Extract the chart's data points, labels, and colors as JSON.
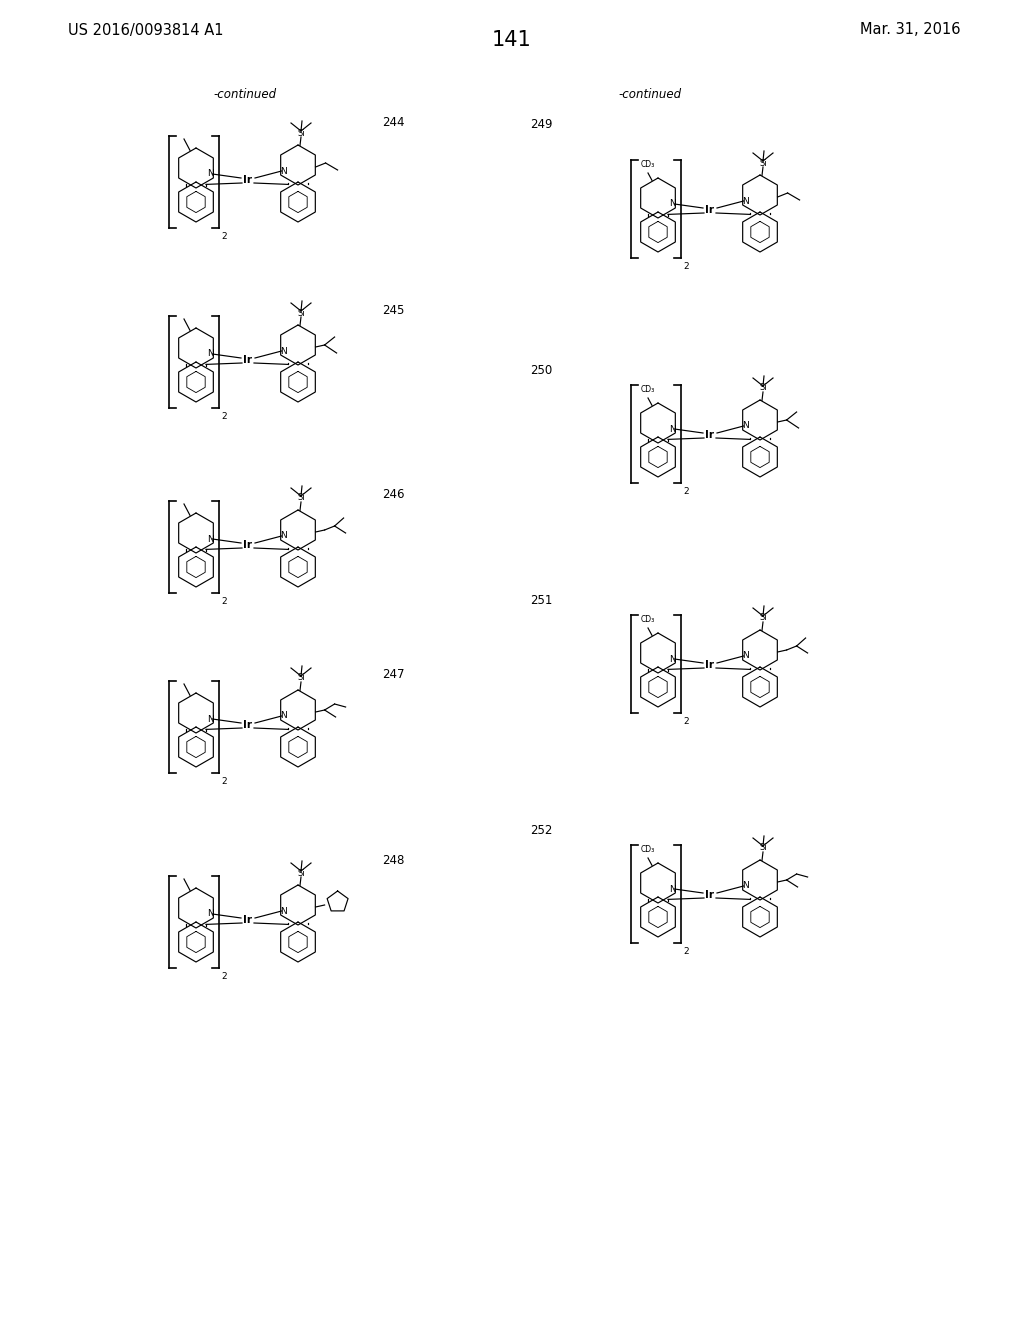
{
  "page_title_left": "US 2016/0093814 A1",
  "page_title_right": "Mar. 31, 2016",
  "page_number": "141",
  "continued_left": "-continued",
  "continued_right": "-continued",
  "compound_numbers_left": [
    "244",
    "245",
    "246",
    "247",
    "248"
  ],
  "compound_numbers_right": [
    "249",
    "250",
    "251",
    "252"
  ],
  "background_color": "#ffffff",
  "text_color": "#000000",
  "font_size_header": 10.5,
  "font_size_page_num": 15,
  "font_size_compound": 8.5,
  "font_size_continued": 8.5,
  "fig_width": 10.24,
  "fig_height": 13.2
}
